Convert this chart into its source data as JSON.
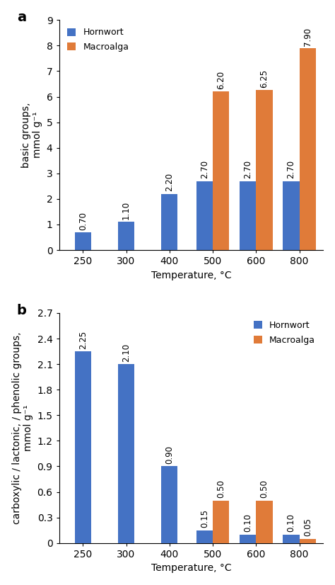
{
  "categories": [
    "250",
    "300",
    "400",
    "500",
    "600",
    "800"
  ],
  "panel_a": {
    "hornwort": [
      0.7,
      1.1,
      2.2,
      2.7,
      2.7,
      2.7
    ],
    "macroalga": [
      null,
      null,
      null,
      6.2,
      6.25,
      7.9
    ],
    "ylabel": "basic groups,\nmmol g⁻¹",
    "ylim": [
      0,
      9
    ],
    "yticks": [
      0,
      1,
      2,
      3,
      4,
      5,
      6,
      7,
      8,
      9
    ],
    "legend_loc": "upper left",
    "panel_label": "a"
  },
  "panel_b": {
    "hornwort": [
      2.25,
      2.1,
      0.9,
      0.15,
      0.1,
      0.1
    ],
    "macroalga": [
      null,
      null,
      null,
      0.5,
      0.5,
      0.05
    ],
    "ylabel": "carboxylic / lactonic, / phenolic groups,\nmmol g⁻¹",
    "ylim": [
      0,
      2.7
    ],
    "yticks": [
      0.0,
      0.3,
      0.6,
      0.9,
      1.2,
      1.5,
      1.8,
      2.1,
      2.4,
      2.7
    ],
    "legend_loc": "upper right",
    "panel_label": "b"
  },
  "xlabel": "Temperature, °C",
  "hornwort_color": "#4472c4",
  "macroalga_color": "#e07b39",
  "bar_width": 0.38,
  "axis_fontsize": 10,
  "legend_fontsize": 9,
  "annot_fontsize": 8.5
}
